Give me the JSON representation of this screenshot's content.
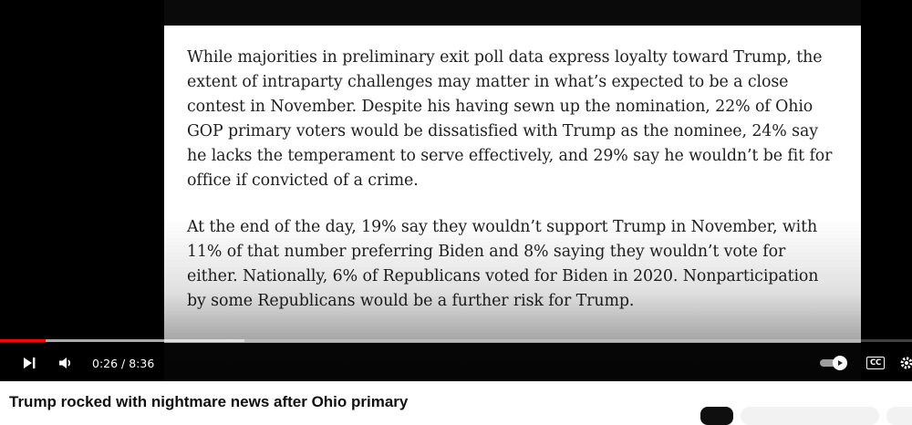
{
  "video": {
    "paragraphs": [
      "While majorities in preliminary exit poll data express loyalty toward Trump, the extent of intraparty challenges may matter in what’s expected to be a close contest in November. Despite his having sewn up the nomination, 22% of Ohio GOP primary voters would be dissatisfied with Trump as the nominee, 24% say he lacks the temperament to serve effectively, and 29% say he wouldn’t be fit for office if convicted of a crime.",
      "At the end of the day, 19% say they wouldn’t support Trump in November, with 11% of that number preferring Biden and 8% saying they wouldn’t vote for either. Nationally, 6% of Republicans voted for Biden in 2020. Nonparticipation by some Republicans would be a further risk for Trump."
    ]
  },
  "player": {
    "time_display": "0:26 / 8:36",
    "progress_played_fraction": 0.05,
    "progress_buffered_fraction": 0.268,
    "autoplay_on": true,
    "cc_label": "CC",
    "icons": {
      "next": "next-track-icon",
      "volume": "volume-icon",
      "autoplay": "autoplay-toggle-icon",
      "subtitles": "subtitles-icon",
      "settings": "settings-icon"
    },
    "accent_color": "#ff0000"
  },
  "title": "Trump rocked with nightmare news after Ohio primary"
}
